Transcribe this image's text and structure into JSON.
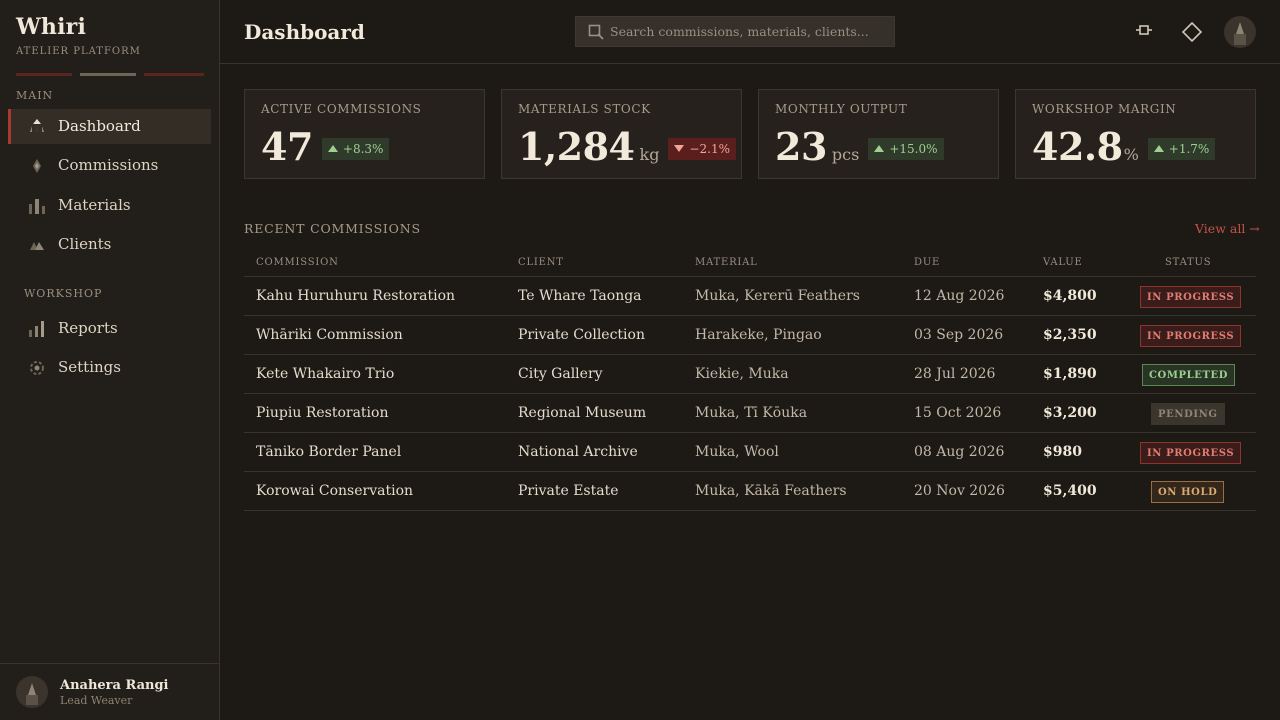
{
  "app": {
    "name": "Whiri",
    "subtitle": "ATELIER PLATFORM"
  },
  "sidebar": {
    "main_label": "MAIN",
    "workshop_label": "WORKSHOP",
    "items": [
      {
        "label": "Dashboard",
        "icon": "dashboard-icon",
        "active": true
      },
      {
        "label": "Commissions",
        "icon": "commissions-icon"
      },
      {
        "label": "Materials",
        "icon": "materials-icon"
      },
      {
        "label": "Clients",
        "icon": "clients-icon"
      },
      {
        "label": "Reports",
        "icon": "reports-icon"
      },
      {
        "label": "Settings",
        "icon": "gear-icon"
      }
    ]
  },
  "user": {
    "name": "Anahera Rangi",
    "role": "Lead Weaver"
  },
  "header": {
    "title": "Dashboard",
    "search_placeholder": "Search commissions, materials, clients..."
  },
  "kpis": [
    {
      "label": "ACTIVE COMMISSIONS",
      "value": "47",
      "unit": "",
      "delta": "+8.3%",
      "trend": "up"
    },
    {
      "label": "MATERIALS STOCK",
      "value": "1,284",
      "unit": "kg",
      "delta": "−2.1%",
      "trend": "down"
    },
    {
      "label": "MONTHLY OUTPUT",
      "value": "23",
      "unit": "pcs",
      "delta": "+15.0%",
      "trend": "up"
    },
    {
      "label": "WORKSHOP MARGIN",
      "value": "42.8",
      "unit": "%",
      "delta": "+1.7%",
      "trend": "up"
    }
  ],
  "recent": {
    "title": "RECENT COMMISSIONS",
    "view_all": "View all →",
    "columns": [
      "COMMISSION",
      "CLIENT",
      "MATERIAL",
      "DUE",
      "VALUE",
      "STATUS"
    ],
    "rows": [
      {
        "commission": "Kahu Huruhuru Restoration",
        "client": "Te Whare Taonga",
        "material": "Muka, Kererū Feathers",
        "due": "12 Aug 2026",
        "value": "$4,800",
        "status": "IN PROGRESS",
        "status_type": "progress"
      },
      {
        "commission": "Whāriki Commission",
        "client": "Private Collection",
        "material": "Harakeke, Pingao",
        "due": "03 Sep 2026",
        "value": "$2,350",
        "status": "IN PROGRESS",
        "status_type": "progress"
      },
      {
        "commission": "Kete Whakairo Trio",
        "client": "City Gallery",
        "material": "Kiekie, Muka",
        "due": "28 Jul 2026",
        "value": "$1,890",
        "status": "COMPLETED",
        "status_type": "completed"
      },
      {
        "commission": "Piupiu Restoration",
        "client": "Regional Museum",
        "material": "Muka, Tī Kōuka",
        "due": "15 Oct 2026",
        "value": "$3,200",
        "status": "PENDING",
        "status_type": "pending"
      },
      {
        "commission": "Tāniko Border Panel",
        "client": "National Archive",
        "material": "Muka, Wool",
        "due": "08 Aug 2026",
        "value": "$980",
        "status": "IN PROGRESS",
        "status_type": "progress"
      },
      {
        "commission": "Korowai Conservation",
        "client": "Private Estate",
        "material": "Muka, Kākā Feathers",
        "due": "20 Nov 2026",
        "value": "$5,400",
        "status": "ON HOLD",
        "status_type": "hold"
      }
    ]
  },
  "colors": {
    "accent": "#a83a30",
    "link": "#c3534a",
    "positive": "#9fd08f",
    "negative": "#f0a398"
  }
}
